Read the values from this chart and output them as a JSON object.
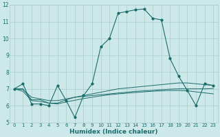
{
  "title": "",
  "xlabel": "Humidex (Indice chaleur)",
  "bg_color": "#cce8e8",
  "grid_color": "#aacccc",
  "line_color": "#1a6b6b",
  "xlim": [
    -0.5,
    23.5
  ],
  "ylim": [
    5,
    12
  ],
  "xticks": [
    0,
    1,
    2,
    3,
    4,
    5,
    6,
    7,
    8,
    9,
    10,
    11,
    12,
    13,
    14,
    15,
    16,
    17,
    18,
    19,
    20,
    21,
    22,
    23
  ],
  "yticks": [
    5,
    6,
    7,
    8,
    9,
    10,
    11,
    12
  ],
  "series": [
    [
      7.0,
      7.3,
      6.1,
      6.1,
      6.0,
      7.2,
      6.3,
      5.3,
      6.6,
      7.3,
      9.5,
      10.0,
      11.5,
      11.6,
      11.7,
      11.75,
      11.2,
      11.1,
      8.8,
      7.75,
      6.9,
      6.0,
      7.3,
      7.2
    ],
    [
      7.0,
      7.0,
      6.35,
      6.35,
      6.15,
      6.15,
      6.35,
      6.5,
      6.6,
      6.7,
      6.8,
      6.9,
      7.0,
      7.05,
      7.1,
      7.15,
      7.2,
      7.25,
      7.3,
      7.35,
      7.35,
      7.3,
      7.25,
      7.2
    ],
    [
      7.0,
      6.95,
      6.5,
      6.4,
      6.3,
      6.3,
      6.4,
      6.5,
      6.55,
      6.6,
      6.65,
      6.7,
      6.75,
      6.8,
      6.85,
      6.88,
      6.9,
      6.95,
      6.98,
      7.0,
      7.0,
      7.0,
      7.0,
      7.02
    ],
    [
      7.0,
      6.85,
      6.3,
      6.25,
      6.15,
      6.1,
      6.22,
      6.32,
      6.42,
      6.5,
      6.58,
      6.65,
      6.7,
      6.74,
      6.78,
      6.82,
      6.86,
      6.88,
      6.9,
      6.9,
      6.88,
      6.82,
      6.76,
      6.7
    ]
  ]
}
